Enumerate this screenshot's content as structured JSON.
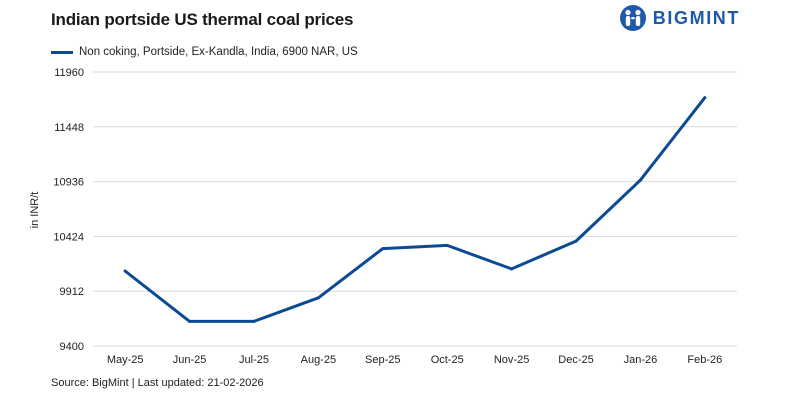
{
  "header": {
    "brand_name": "BIGMINT",
    "brand_icon": "people-logo-icon"
  },
  "footer": {
    "source": "Source: BigMint | Last updated: 21-02-2026"
  },
  "colors": {
    "series": "#0d4a94",
    "brand": "#1f5aa8",
    "grid": "#d9d9d9"
  },
  "chart_data": {
    "type": "line",
    "title": "Indian portside US thermal coal prices",
    "xlabel": "",
    "ylabel": "in INR/t",
    "categories": [
      "May-25",
      "Jun-25",
      "Jul-25",
      "Aug-25",
      "Sep-25",
      "Oct-25",
      "Nov-25",
      "Dec-25",
      "Jan-26",
      "Feb-26"
    ],
    "series": [
      {
        "name": "Non coking, Portside, Ex-Kandla, India, 6900 NAR, US",
        "values": [
          10100,
          9630,
          9630,
          9850,
          10310,
          10340,
          10120,
          10380,
          10950,
          11720
        ]
      }
    ],
    "ylim": [
      9400,
      11960
    ],
    "yticks": [
      9400,
      9912,
      10424,
      10936,
      11448,
      11960
    ],
    "grid": true,
    "legend": "top-left"
  }
}
